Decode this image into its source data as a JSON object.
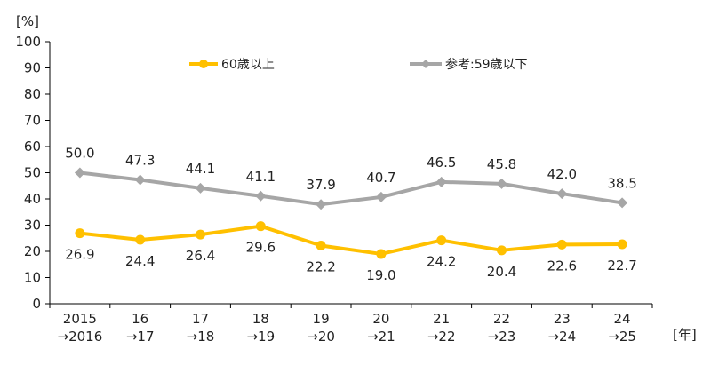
{
  "chart_data": {
    "type": "line",
    "y_unit_label": "[%]",
    "x_unit_label": "[年]",
    "ylim": [
      0,
      100
    ],
    "y_ticks": [
      "0",
      "10",
      "20",
      "30",
      "40",
      "50",
      "60",
      "70",
      "80",
      "90",
      "100"
    ],
    "categories": [
      [
        "2015",
        "→2016"
      ],
      [
        "16",
        "→17"
      ],
      [
        "17",
        "→18"
      ],
      [
        "18",
        "→19"
      ],
      [
        "19",
        "→20"
      ],
      [
        "20",
        "→21"
      ],
      [
        "21",
        "→22"
      ],
      [
        "22",
        "→23"
      ],
      [
        "23",
        "→24"
      ],
      [
        "24",
        "→25"
      ]
    ],
    "series": [
      {
        "name": "60歳以上",
        "color": "#FFC000",
        "marker": "circle",
        "label_position": "below",
        "values": [
          26.9,
          24.4,
          26.4,
          29.6,
          22.2,
          19.0,
          24.2,
          20.4,
          22.6,
          22.7
        ],
        "labels": [
          "26.9",
          "24.4",
          "26.4",
          "29.6",
          "22.2",
          "19.0",
          "24.2",
          "20.4",
          "22.6",
          "22.7"
        ]
      },
      {
        "name": "参考:59歳以下",
        "color": "#A6A6A6",
        "marker": "diamond",
        "label_position": "above",
        "values": [
          50.0,
          47.3,
          44.1,
          41.1,
          37.9,
          40.7,
          46.5,
          45.8,
          42.0,
          38.5
        ],
        "labels": [
          "50.0",
          "47.3",
          "44.1",
          "41.1",
          "37.9",
          "40.7",
          "46.5",
          "45.8",
          "42.0",
          "38.5"
        ]
      }
    ],
    "grid": false,
    "legend": "top"
  }
}
